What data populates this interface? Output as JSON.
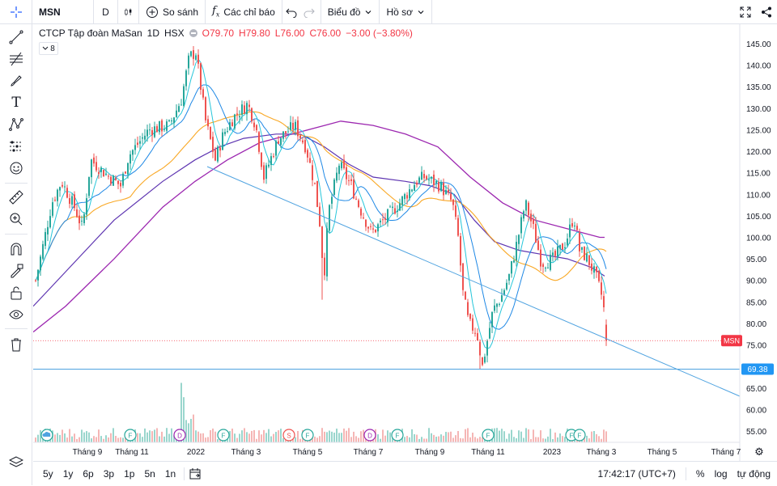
{
  "toolbar": {
    "symbol": "MSN",
    "interval": "D",
    "compare_label": "So sánh",
    "indicators_label": "Các chỉ báo",
    "chart_type_label": "Biểu đồ",
    "profile_label": "Hồ sơ"
  },
  "legend": {
    "title": "CTCP Tập đoàn MaSan",
    "interval": "1D",
    "exchange": "HSX",
    "open": "O79.70",
    "high": "H79.80",
    "low": "L76.00",
    "close": "C76.00",
    "change": "−3.00 (−3.80%)",
    "indicator_count": "8"
  },
  "price_axis": {
    "ticks": [
      "145.00",
      "140.00",
      "135.00",
      "130.00",
      "125.00",
      "120.00",
      "115.00",
      "110.00",
      "105.00",
      "100.00",
      "95.00",
      "90.00",
      "85.00",
      "80.00",
      "75.00",
      "70.00",
      "65.00",
      "60.00",
      "55.00"
    ],
    "symbol_label": "MSN",
    "hline_label": "69.38"
  },
  "time_axis": {
    "ticks": [
      "Tháng 9",
      "Tháng 11",
      "2022",
      "Tháng 3",
      "Tháng 5",
      "Tháng 7",
      "Tháng 9",
      "Tháng 11",
      "2023",
      "Tháng 3",
      "Tháng 5",
      "Tháng 7"
    ]
  },
  "bottom": {
    "ranges": [
      "5y",
      "1y",
      "6p",
      "3p",
      "1p",
      "5n",
      "1n"
    ],
    "time": "17:42:17 (UTC+7)",
    "percent": "%",
    "log": "log",
    "auto": "tự động"
  },
  "colors": {
    "up": "#26a69a",
    "down": "#ef5350",
    "ma_fast": "#26c6da",
    "ma_mid": "#1e88e5",
    "ma_slow": "#f9a825",
    "ma_long": "#5e35b1",
    "ma_vlong": "#9c27b0",
    "trendline": "#4fa3e0",
    "symbol_label_bg": "#f23645",
    "hline_label_bg": "#2196f3"
  },
  "chart_data": {
    "type": "candlestick",
    "series": [
      {
        "name": "MSN",
        "note": "daily OHLC approximated"
      }
    ],
    "ylim": [
      52,
      148
    ],
    "last_close": 76.0,
    "horizontal_line": 69.38
  }
}
